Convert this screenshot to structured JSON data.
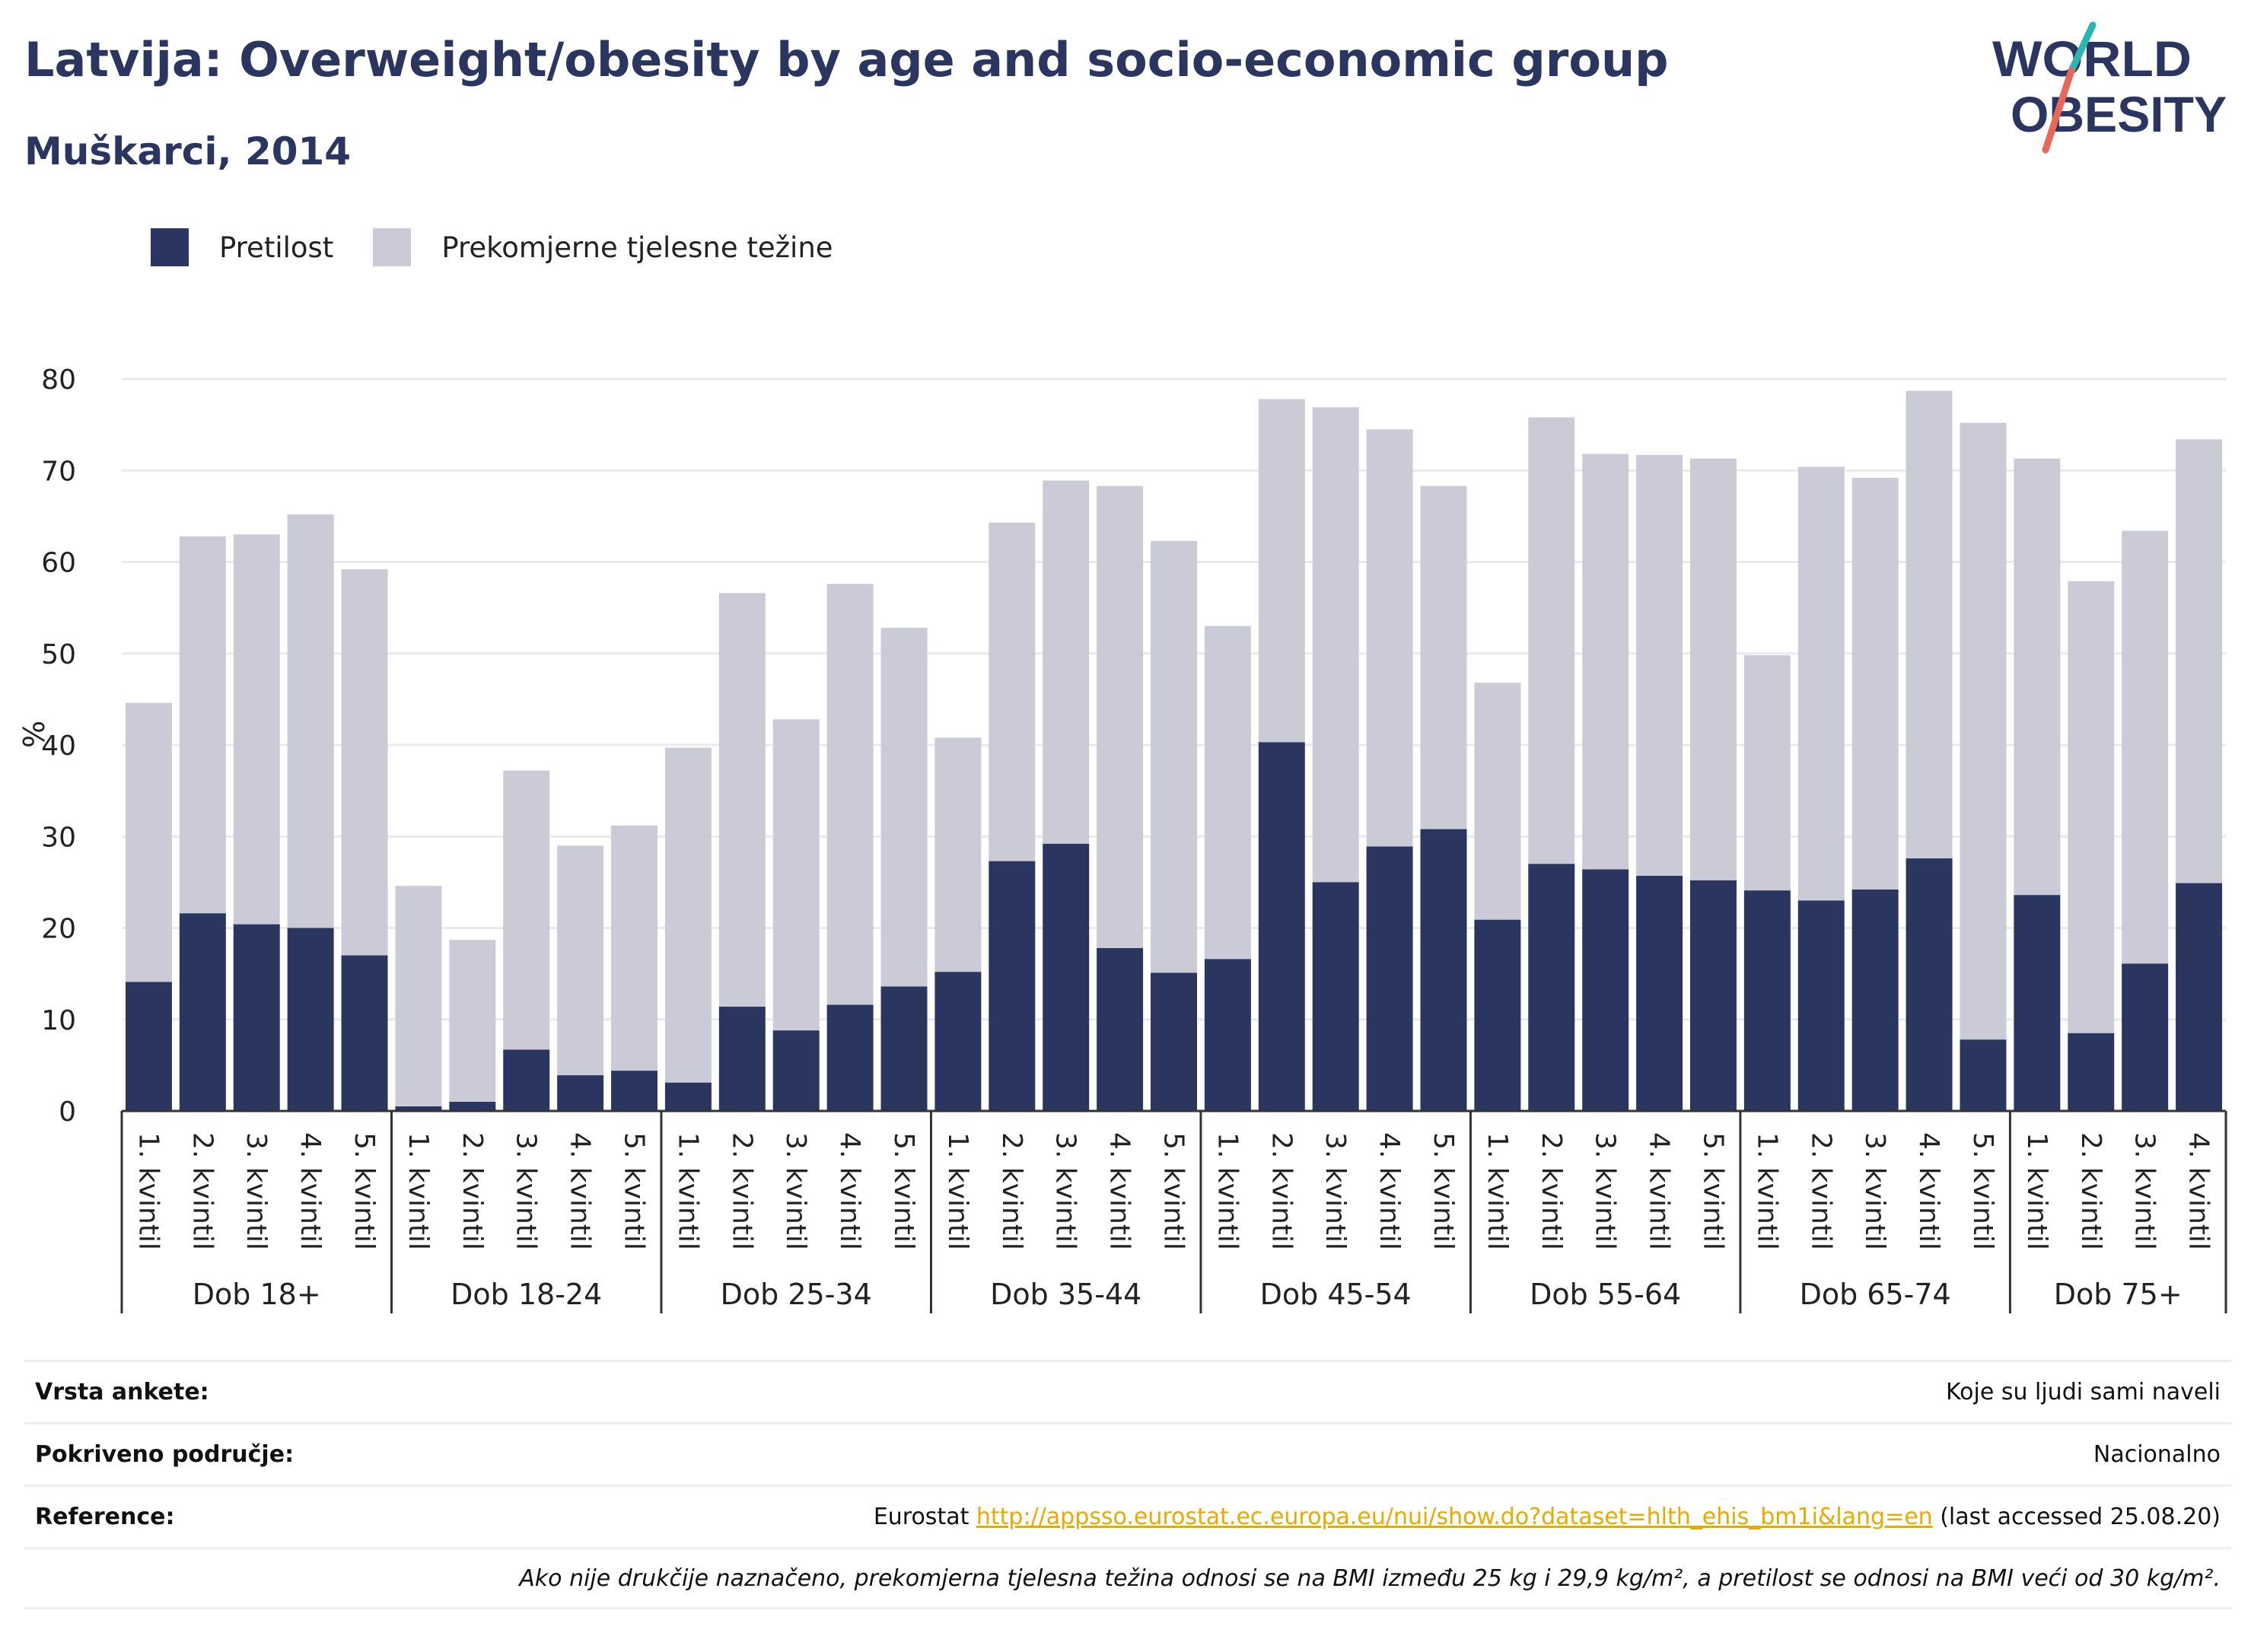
{
  "title": "Latvija: Overweight/obesity by age and socio-economic group",
  "subtitle": "Muškarci, 2014",
  "logo": {
    "line1": "WORLD",
    "line2": "OBESITY"
  },
  "colors": {
    "obesity": "#2a3560",
    "overweight": "#cacbd7",
    "title": "#2a3560",
    "grid": "#e9e9ee",
    "link": "#e8a900"
  },
  "legend": [
    {
      "label": "Pretilost",
      "color": "#2a3560"
    },
    {
      "label": "Prekomjerne tjelesne težine",
      "color": "#cacbd7"
    }
  ],
  "chart_data": {
    "type": "bar",
    "stacked": true,
    "ylabel": "%",
    "ylim": [
      0,
      80
    ],
    "yticks": [
      0,
      10,
      20,
      30,
      40,
      50,
      60,
      70,
      80
    ],
    "grid": true,
    "legend_position": "top-left",
    "groups": [
      {
        "label": "Dob 18+",
        "categories": [
          "1. kvintil",
          "2. kvintil",
          "3. kvintil",
          "4. kvintil",
          "5. kvintil"
        ]
      },
      {
        "label": "Dob 18-24",
        "categories": [
          "1. kvintil",
          "2. kvintil",
          "3. kvintil",
          "4. kvintil",
          "5. kvintil"
        ]
      },
      {
        "label": "Dob 25-34",
        "categories": [
          "1. kvintil",
          "2. kvintil",
          "3. kvintil",
          "4. kvintil",
          "5. kvintil"
        ]
      },
      {
        "label": "Dob 35-44",
        "categories": [
          "1. kvintil",
          "2. kvintil",
          "3. kvintil",
          "4. kvintil",
          "5. kvintil"
        ]
      },
      {
        "label": "Dob 45-54",
        "categories": [
          "1. kvintil",
          "2. kvintil",
          "3. kvintil",
          "4. kvintil",
          "5. kvintil"
        ]
      },
      {
        "label": "Dob 55-64",
        "categories": [
          "1. kvintil",
          "2. kvintil",
          "3. kvintil",
          "4. kvintil",
          "5. kvintil"
        ]
      },
      {
        "label": "Dob 65-74",
        "categories": [
          "1. kvintil",
          "2. kvintil",
          "3. kvintil",
          "4. kvintil",
          "5. kvintil"
        ]
      },
      {
        "label": "Dob 75+",
        "categories": [
          "1. kvintil",
          "2. kvintil",
          "3. kvintil",
          "4. kvintil"
        ]
      }
    ],
    "series": [
      {
        "name": "Pretilost",
        "values": [
          14.1,
          21.6,
          20.4,
          20.0,
          17.0,
          0.5,
          1.0,
          6.7,
          3.9,
          4.4,
          3.1,
          11.4,
          8.8,
          11.6,
          13.6,
          15.2,
          27.3,
          29.2,
          17.8,
          15.1,
          16.6,
          40.3,
          25.0,
          28.9,
          30.8,
          20.9,
          27.0,
          26.4,
          25.7,
          25.2,
          24.1,
          23.0,
          24.2,
          27.6,
          7.8,
          23.6,
          8.5,
          16.1,
          24.9
        ]
      },
      {
        "name": "Prekomjerne tjelesne težine",
        "values": [
          30.5,
          41.2,
          42.6,
          45.2,
          42.2,
          24.1,
          17.7,
          30.5,
          25.1,
          26.8,
          36.6,
          45.2,
          34.0,
          46.0,
          39.2,
          25.6,
          37.0,
          39.7,
          50.5,
          47.2,
          36.4,
          37.5,
          51.9,
          45.6,
          37.5,
          25.9,
          48.8,
          45.4,
          46.0,
          46.1,
          25.7,
          47.4,
          45.0,
          51.1,
          67.4,
          47.7,
          49.4,
          47.3,
          48.5
        ]
      }
    ]
  },
  "meta": [
    {
      "label": "Vrsta ankete:",
      "value": "Koje su ljudi sami naveli"
    },
    {
      "label": "Pokriveno područje:",
      "value": "Nacionalno"
    },
    {
      "label": "Reference:",
      "value_prefix": "Eurostat ",
      "link": "http://appsso.eurostat.ec.europa.eu/nui/show.do?dataset=hlth_ehis_bm1i&lang=en",
      "value_suffix": " (last accessed 25.08.20)"
    }
  ],
  "note": "Ako nije drukčije naznačeno, prekomjerna tjelesna težina odnosi se na BMI između 25 kg i 29,9 kg/m², a pretilost se odnosi na BMI veći od 30 kg/m²."
}
